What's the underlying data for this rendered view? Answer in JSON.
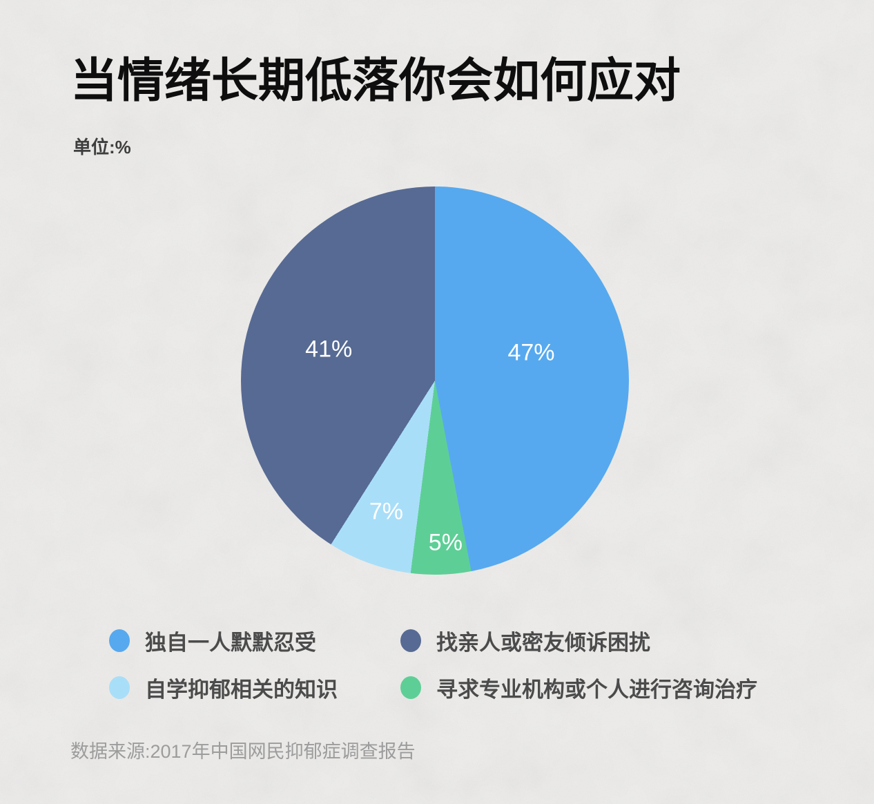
{
  "header": {
    "title": "当情绪长期低落你会如何应对",
    "unit_label": "单位:%"
  },
  "footer": {
    "source": "数据来源:2017年中国网民抑郁症调查报告"
  },
  "chart_data": {
    "type": "pie",
    "title": "当情绪长期低落你会如何应对",
    "unit": "%",
    "start_angle_deg": 0,
    "direction": "clockwise",
    "slices": [
      {
        "label": "独自一人默默忍受",
        "value": 47,
        "data_label": "47%",
        "color": "#56a9ef"
      },
      {
        "label": "寻求专业机构或个人进行咨询治疗",
        "value": 5,
        "data_label": "5%",
        "color": "#5dcf96"
      },
      {
        "label": "自学抑郁相关的知识",
        "value": 7,
        "data_label": "7%",
        "color": "#a9def8"
      },
      {
        "label": "找亲人或密友倾诉困扰",
        "value": 41,
        "data_label": "41%",
        "color": "#576a93"
      }
    ],
    "legend_order": [
      0,
      3,
      2,
      1
    ],
    "legend_position": "bottom",
    "background_color": "#edecea"
  }
}
